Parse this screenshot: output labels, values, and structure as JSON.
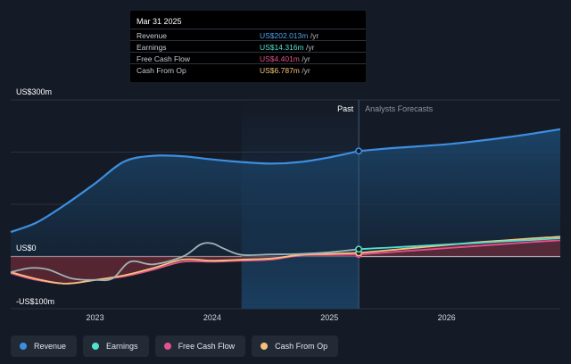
{
  "tooltip": {
    "date": "Mar 31 2025",
    "rows": [
      {
        "label": "Revenue",
        "value": "US$202.013m",
        "unit": " /yr",
        "color": "#4aa3f0"
      },
      {
        "label": "Earnings",
        "value": "US$14.316m",
        "unit": " /yr",
        "color": "#52e0cf"
      },
      {
        "label": "Free Cash Flow",
        "value": "US$4.401m",
        "unit": " /yr",
        "color": "#e3518f"
      },
      {
        "label": "Cash From Op",
        "value": "US$6.787m",
        "unit": " /yr",
        "color": "#f4c27a"
      }
    ]
  },
  "legend": [
    {
      "label": "Revenue",
      "color": "#3d8fe0"
    },
    {
      "label": "Earnings",
      "color": "#52e0cf"
    },
    {
      "label": "Free Cash Flow",
      "color": "#e3518f"
    },
    {
      "label": "Cash From Op",
      "color": "#f4c27a"
    }
  ],
  "chart_data": {
    "type": "line",
    "y_unit_labels": {
      "top": "US$300m",
      "zero": "US$0",
      "bottom": "-US$100m"
    },
    "ylim": [
      -100,
      300
    ],
    "xlim": [
      2022.28,
      2026.97
    ],
    "x_ticks": [
      2023,
      2024,
      2025,
      2026
    ],
    "x_tick_labels": [
      "2023",
      "2024",
      "2025",
      "2026"
    ],
    "past_label": "Past",
    "forecast_label": "Analysts Forecasts",
    "past_region": [
      2024.25,
      2025.25
    ],
    "series": [
      {
        "name": "Revenue",
        "color": "#3d8fe0",
        "x": [
          2022.28,
          2022.5,
          2022.75,
          2023.0,
          2023.25,
          2023.5,
          2023.75,
          2024.0,
          2024.25,
          2024.5,
          2024.75,
          2025.0,
          2025.25
        ],
        "y": [
          47,
          65,
          100,
          140,
          182,
          193,
          192,
          186,
          181,
          178,
          181,
          190,
          202
        ],
        "forecast_x": [
          2025.25,
          2025.5,
          2025.75,
          2026.0,
          2026.25,
          2026.5,
          2026.75,
          2026.97
        ],
        "forecast_y": [
          202,
          207,
          211,
          215,
          221,
          228,
          236,
          244
        ]
      },
      {
        "name": "Earnings",
        "color": "#52e0cf",
        "x": [
          2022.28,
          2022.45,
          2022.6,
          2022.8,
          2023.0,
          2023.15,
          2023.3,
          2023.5,
          2023.75,
          2023.9,
          2024.0,
          2024.1,
          2024.25,
          2024.5,
          2024.75,
          2025.0,
          2025.25
        ],
        "y": [
          -30,
          -22,
          -25,
          -42,
          -45,
          -42,
          -10,
          -15,
          0,
          23,
          25,
          15,
          3,
          4,
          5,
          8,
          14
        ],
        "forecast_x": [
          2025.25,
          2025.5,
          2025.75,
          2026.0,
          2026.25,
          2026.5,
          2026.75,
          2026.97
        ],
        "forecast_y": [
          14,
          17,
          20,
          23,
          26,
          29,
          32,
          35
        ]
      },
      {
        "name": "Free Cash Flow",
        "color": "#e3518f",
        "x": [
          2022.28,
          2022.5,
          2022.75,
          2023.0,
          2023.25,
          2023.5,
          2023.75,
          2024.0,
          2024.25,
          2024.5,
          2024.75,
          2025.0,
          2025.25
        ],
        "y": [
          -32,
          -45,
          -52,
          -45,
          -38,
          -25,
          -10,
          -10,
          -8,
          -6,
          2,
          3,
          4
        ],
        "forecast_x": [
          2025.25,
          2025.5,
          2025.75,
          2026.0,
          2026.25,
          2026.5,
          2026.75,
          2026.97
        ],
        "forecast_y": [
          4,
          8,
          12,
          16,
          20,
          24,
          28,
          31
        ]
      },
      {
        "name": "Cash From Op",
        "color": "#f4c27a",
        "x": [
          2022.28,
          2022.5,
          2022.75,
          2023.0,
          2023.25,
          2023.5,
          2023.75,
          2024.0,
          2024.25,
          2024.5,
          2024.75,
          2025.0,
          2025.25
        ],
        "y": [
          -30,
          -43,
          -52,
          -45,
          -36,
          -22,
          -6,
          -8,
          -6,
          -4,
          3,
          5,
          7
        ],
        "forecast_x": [
          2025.25,
          2025.5,
          2025.75,
          2026.0,
          2026.25,
          2026.5,
          2026.75,
          2026.97
        ],
        "forecast_y": [
          7,
          12,
          17,
          22,
          27,
          31,
          35,
          38
        ]
      }
    ]
  }
}
